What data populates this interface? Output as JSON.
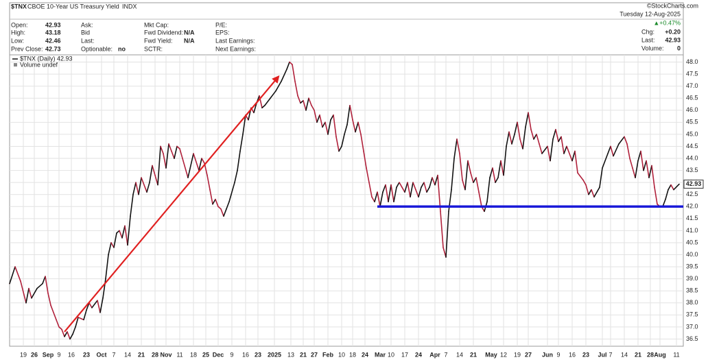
{
  "header": {
    "symbol": "$TNX",
    "name": "CBOE 10-Year US Treasury Yield",
    "exchange": "INDX",
    "source": "©StockCharts.com",
    "date": "Tuesday 12-Aug-2025",
    "change_pct": "▲+0.47%",
    "columns": [
      [
        {
          "label": "Open:",
          "value": "42.93"
        },
        {
          "label": "High:",
          "value": "43.18"
        },
        {
          "label": "Low:",
          "value": "42.46"
        },
        {
          "label": "Prev Close:",
          "value": "42.73"
        }
      ],
      [
        {
          "label": "Ask:"
        },
        {
          "label": "Bid"
        },
        {
          "label": "Last:"
        },
        {
          "label": "Optionable:",
          "value": "no"
        }
      ],
      [
        {
          "label": "Mkt Cap:"
        },
        {
          "label": "Fwd Dividend:",
          "value": "N/A"
        },
        {
          "label": "Fwd Yield:",
          "value": "N/A"
        },
        {
          "label": "SCTR:"
        }
      ],
      [
        {
          "label": "P/E:"
        },
        {
          "label": "EPS:"
        },
        {
          "label": "Last Earnings:"
        },
        {
          "label": "Next Earnings:"
        }
      ]
    ],
    "stats": [
      {
        "label": "Chg:",
        "value": "+0.20"
      },
      {
        "label": "Last:",
        "value": "42.93"
      },
      {
        "label": "Volume:",
        "value": "0"
      }
    ]
  },
  "chart_data": {
    "type": "line",
    "volume_legend": "Volume undef",
    "series": [
      {
        "name": "$TNX (Daily) 42.93",
        "up_color": "#111111",
        "down_color": "#b0203a",
        "x": [
          0,
          2,
          4,
          6,
          7,
          8,
          10,
          12,
          13,
          14,
          15,
          17,
          18,
          19,
          20,
          21,
          22,
          23,
          24,
          25,
          27,
          28,
          29,
          30,
          32,
          33,
          34,
          35,
          36,
          37,
          38,
          39,
          40,
          41,
          42,
          43,
          44,
          45,
          46,
          47,
          48,
          50,
          51,
          52,
          53,
          54,
          55,
          56,
          57,
          58,
          59,
          60,
          61,
          62,
          63,
          65,
          67,
          69,
          70,
          71,
          72,
          73,
          74,
          75,
          76,
          77,
          78,
          79,
          80,
          82,
          83,
          84,
          85,
          86,
          87,
          88,
          89,
          90,
          91,
          92,
          93,
          95,
          97,
          99,
          101,
          102,
          103,
          104,
          105,
          106,
          107,
          108,
          109,
          110,
          111,
          112,
          113,
          114,
          115,
          116,
          117,
          118,
          119,
          120,
          121,
          122,
          123,
          124,
          125,
          126,
          127,
          128,
          129,
          130,
          131,
          132,
          133,
          134,
          135,
          136,
          137,
          138,
          139,
          140,
          141,
          142,
          143,
          144,
          145,
          146,
          147,
          148,
          149,
          150,
          151,
          152,
          153,
          154,
          155,
          156,
          157,
          158,
          159,
          160,
          161,
          162,
          163,
          164,
          165,
          166,
          167,
          168,
          169,
          170,
          171,
          172,
          173,
          174,
          175,
          176,
          177,
          178,
          179,
          180,
          181,
          182,
          183,
          184,
          185,
          186,
          187,
          188,
          189,
          190,
          191,
          192,
          193,
          194,
          196,
          197,
          198,
          199,
          200,
          201,
          202,
          203,
          205,
          206,
          207,
          209,
          210,
          211,
          212,
          213,
          215,
          216,
          218,
          219,
          220,
          222,
          224,
          225,
          226,
          227,
          228,
          229,
          230,
          231,
          232,
          233,
          234,
          235,
          236,
          237,
          238,
          239,
          240,
          241,
          242,
          244
        ],
        "values": [
          38.8,
          39.5,
          38.9,
          38.0,
          38.6,
          38.2,
          38.6,
          38.8,
          39.1,
          38.4,
          37.9,
          37.3,
          37.0,
          36.9,
          36.6,
          36.8,
          36.5,
          36.7,
          37.0,
          37.4,
          37.3,
          37.7,
          38.0,
          37.8,
          38.1,
          37.6,
          38.2,
          39.0,
          40.0,
          40.5,
          40.3,
          40.9,
          41.0,
          40.7,
          41.2,
          40.4,
          41.6,
          42.5,
          43.0,
          42.5,
          43.2,
          42.6,
          43.0,
          43.7,
          43.3,
          42.9,
          44.5,
          44.2,
          43.6,
          44.6,
          44.3,
          44.0,
          44.5,
          44.4,
          44.0,
          43.2,
          44.2,
          43.5,
          44.0,
          43.8,
          43.3,
          42.7,
          42.1,
          42.3,
          42.0,
          41.9,
          41.6,
          41.9,
          42.2,
          43.0,
          43.5,
          44.3,
          45.0,
          45.8,
          45.6,
          46.1,
          45.9,
          46.3,
          46.6,
          46.1,
          46.2,
          46.5,
          46.8,
          47.2,
          47.7,
          48.0,
          47.9,
          47.2,
          46.6,
          46.3,
          46.4,
          46.0,
          46.5,
          46.2,
          46.0,
          45.5,
          45.8,
          45.3,
          45.5,
          45.0,
          45.6,
          45.8,
          44.9,
          44.3,
          44.5,
          45.0,
          45.4,
          46.2,
          45.6,
          45.1,
          45.5,
          45.0,
          44.3,
          43.6,
          43.0,
          42.4,
          42.2,
          42.6,
          42.0,
          42.6,
          42.9,
          42.2,
          42.9,
          42.2,
          42.8,
          43.0,
          42.8,
          42.6,
          43.0,
          42.4,
          43.0,
          42.7,
          42.4,
          42.8,
          43.0,
          42.6,
          42.8,
          43.2,
          42.9,
          43.3,
          41.8,
          40.3,
          39.9,
          41.8,
          42.7,
          44.0,
          44.8,
          44.2,
          43.1,
          42.7,
          43.9,
          43.4,
          43.0,
          43.2,
          42.6,
          42.0,
          41.8,
          42.2,
          43.2,
          43.6,
          43.0,
          43.2,
          43.9,
          43.3,
          44.5,
          45.1,
          44.6,
          45.0,
          45.5,
          44.8,
          44.4,
          45.3,
          45.9,
          45.2,
          44.8,
          45.0,
          44.6,
          44.2,
          44.5,
          43.9,
          44.8,
          45.2,
          44.7,
          44.9,
          44.2,
          44.5,
          43.9,
          44.3,
          43.4,
          43.1,
          42.9,
          42.5,
          42.7,
          42.4,
          42.8,
          43.6,
          44.2,
          44.5,
          44.1,
          44.6,
          44.9,
          44.6,
          44.0,
          43.6,
          43.2,
          43.9,
          44.3,
          43.5,
          43.9,
          43.2,
          43.7,
          42.8,
          42.1,
          42.0,
          42.0,
          42.3,
          42.7,
          42.9,
          42.7,
          42.93
        ]
      }
    ],
    "annotations": [
      {
        "type": "arrow",
        "color": "#e02020",
        "x": [
          20,
          98
        ],
        "y": [
          36.8,
          47.4
        ]
      },
      {
        "type": "line",
        "color": "#1a1ad8",
        "x": [
          134,
          245.5
        ],
        "y": [
          42.0,
          42.0
        ]
      }
    ],
    "xlim": [
      0,
      245.5
    ],
    "ylim": [
      36.2,
      48.3
    ],
    "grid": true,
    "y_axis_side": "right",
    "xticks": [
      {
        "value": 5,
        "label": "19"
      },
      {
        "value": 9,
        "label": "26"
      },
      {
        "value": 14,
        "label": "Sep"
      },
      {
        "value": 18,
        "label": "9"
      },
      {
        "value": 22.5,
        "label": "16"
      },
      {
        "value": 28,
        "label": "23"
      },
      {
        "value": 33.5,
        "label": "Oct"
      },
      {
        "value": 38,
        "label": "7"
      },
      {
        "value": 43,
        "label": "14"
      },
      {
        "value": 48,
        "label": "21"
      },
      {
        "value": 53,
        "label": "28"
      },
      {
        "value": 57,
        "label": "Nov"
      },
      {
        "value": 62,
        "label": "11"
      },
      {
        "value": 67,
        "label": "18"
      },
      {
        "value": 71.5,
        "label": "25"
      },
      {
        "value": 76,
        "label": "Dec"
      },
      {
        "value": 81,
        "label": "9"
      },
      {
        "value": 86,
        "label": "16"
      },
      {
        "value": 90.5,
        "label": "23"
      },
      {
        "value": 96.5,
        "label": "2025"
      },
      {
        "value": 102.5,
        "label": "13"
      },
      {
        "value": 107,
        "label": "21"
      },
      {
        "value": 111,
        "label": "27"
      },
      {
        "value": 116,
        "label": "Feb"
      },
      {
        "value": 121,
        "label": "10"
      },
      {
        "value": 125,
        "label": "18"
      },
      {
        "value": 129.5,
        "label": "24"
      },
      {
        "value": 135,
        "label": "Mar"
      },
      {
        "value": 139,
        "label": "10"
      },
      {
        "value": 144,
        "label": "17"
      },
      {
        "value": 149,
        "label": "24"
      },
      {
        "value": 155,
        "label": "Apr"
      },
      {
        "value": 159,
        "label": "7"
      },
      {
        "value": 164,
        "label": "14"
      },
      {
        "value": 169,
        "label": "21"
      },
      {
        "value": 175.5,
        "label": "May"
      },
      {
        "value": 180,
        "label": "12"
      },
      {
        "value": 185,
        "label": "19"
      },
      {
        "value": 189,
        "label": "27"
      },
      {
        "value": 196,
        "label": "Jun"
      },
      {
        "value": 200,
        "label": "9"
      },
      {
        "value": 205,
        "label": "16"
      },
      {
        "value": 210,
        "label": "23"
      },
      {
        "value": 216,
        "label": "Jul"
      },
      {
        "value": 219,
        "label": "7"
      },
      {
        "value": 224,
        "label": "14"
      },
      {
        "value": 229,
        "label": "21"
      },
      {
        "value": 233.5,
        "label": "28"
      },
      {
        "value": 237,
        "label": "Aug"
      },
      {
        "value": 243,
        "label": "11"
      }
    ],
    "yticks": [
      36.5,
      {
        "value": 37,
        "label": "37.0"
      },
      37.5,
      {
        "value": 38,
        "label": "38.0"
      },
      38.5,
      {
        "value": 39,
        "label": "39.0"
      },
      39.5,
      {
        "value": 40,
        "label": "40.0"
      },
      40.5,
      {
        "value": 41,
        "label": "41.0"
      },
      41.5,
      {
        "value": 42,
        "label": "42.0"
      },
      42.5,
      {
        "value": 43,
        "label": "43.0"
      },
      43.5,
      {
        "value": 44,
        "label": "44.0"
      },
      44.5,
      {
        "value": 45,
        "label": "45.0"
      },
      45.5,
      {
        "value": 46,
        "label": "46.0"
      },
      46.5,
      {
        "value": 47,
        "label": "47.0"
      },
      47.5,
      {
        "value": 48,
        "label": "48.0"
      }
    ]
  }
}
